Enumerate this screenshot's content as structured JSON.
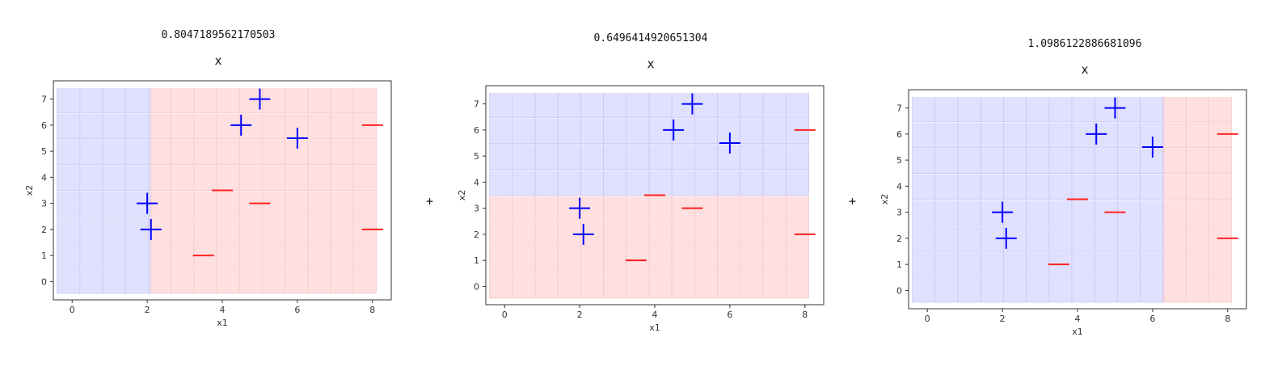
{
  "charts": [
    {
      "weight": "0.8047189562170503",
      "title": "x"
    },
    {
      "weight": "0.6496414920651304",
      "title": "x"
    },
    {
      "weight": "1.0986122886681096",
      "title": "x"
    }
  ],
  "operator": "+",
  "colors": {
    "positive": "#0000ff",
    "negative": "#ff2020",
    "region_positive": "#e0e0ff",
    "region_negative": "#ffe0e0"
  },
  "chart_data": [
    {
      "type": "scatter",
      "title": "x",
      "xlabel": "x1",
      "ylabel": "x2",
      "xlim": [
        -0.5,
        8.5
      ],
      "ylim": [
        -0.7,
        7.7
      ],
      "xticks": [
        0,
        2,
        4,
        6,
        8
      ],
      "yticks": [
        0,
        1,
        2,
        3,
        4,
        5,
        6,
        7
      ],
      "split": {
        "feature": "x1",
        "threshold": 2.1,
        "below": "positive",
        "above": "negative"
      },
      "series": [
        {
          "label": "+",
          "points": [
            [
              2,
              3
            ],
            [
              2.1,
              2
            ],
            [
              4.5,
              6
            ],
            [
              5,
              7
            ],
            [
              6,
              5.5
            ]
          ]
        },
        {
          "label": "-",
          "points": [
            [
              3.5,
              1
            ],
            [
              4,
              3.5
            ],
            [
              5,
              3
            ],
            [
              8,
              6
            ],
            [
              8,
              2
            ]
          ]
        }
      ]
    },
    {
      "type": "scatter",
      "title": "x",
      "xlabel": "x1",
      "ylabel": "x2",
      "xlim": [
        -0.5,
        8.5
      ],
      "ylim": [
        -0.7,
        7.7
      ],
      "xticks": [
        0,
        2,
        4,
        6,
        8
      ],
      "yticks": [
        0,
        1,
        2,
        3,
        4,
        5,
        6,
        7
      ],
      "split": {
        "feature": "x2",
        "threshold": 3.5,
        "below": "negative",
        "above": "positive"
      },
      "series": [
        {
          "label": "+",
          "points": [
            [
              2,
              3
            ],
            [
              2.1,
              2
            ],
            [
              4.5,
              6
            ],
            [
              5,
              7
            ],
            [
              6,
              5.5
            ]
          ]
        },
        {
          "label": "-",
          "points": [
            [
              3.5,
              1
            ],
            [
              4,
              3.5
            ],
            [
              5,
              3
            ],
            [
              8,
              6
            ],
            [
              8,
              2
            ]
          ]
        }
      ]
    },
    {
      "type": "scatter",
      "title": "x",
      "xlabel": "x1",
      "ylabel": "x2",
      "xlim": [
        -0.5,
        8.5
      ],
      "ylim": [
        -0.7,
        7.7
      ],
      "xticks": [
        0,
        2,
        4,
        6,
        8
      ],
      "yticks": [
        0,
        1,
        2,
        3,
        4,
        5,
        6,
        7
      ],
      "split": {
        "feature": "x1",
        "threshold": 6.3,
        "below": "positive",
        "above": "negative"
      },
      "series": [
        {
          "label": "+",
          "points": [
            [
              2,
              3
            ],
            [
              2.1,
              2
            ],
            [
              4.5,
              6
            ],
            [
              5,
              7
            ],
            [
              6,
              5.5
            ]
          ]
        },
        {
          "label": "-",
          "points": [
            [
              3.5,
              1
            ],
            [
              4,
              3.5
            ],
            [
              5,
              3
            ],
            [
              8,
              6
            ],
            [
              8,
              2
            ]
          ]
        }
      ]
    }
  ]
}
